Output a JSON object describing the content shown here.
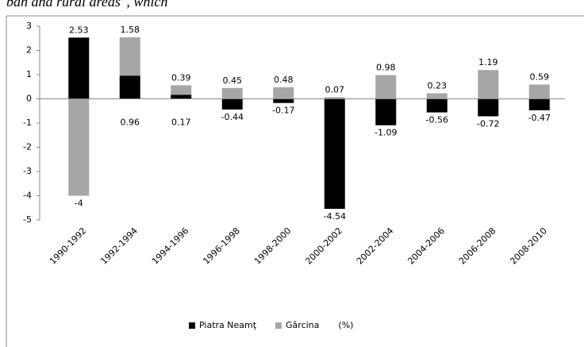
{
  "document_text": "ban and rural areas\", which",
  "chart_data": {
    "type": "stacked-bar",
    "categories": [
      "1990-1992",
      "1992-1994",
      "1994-1996",
      "1996-1998",
      "1998-2000",
      "2000-2002",
      "2002-2004",
      "2004-2006",
      "2006-2008",
      "2008-2010"
    ],
    "series": [
      {
        "name": "Piatra Neamţ",
        "color": "#000000",
        "values": [
          2.53,
          0.96,
          0.17,
          -0.44,
          -0.17,
          -4.54,
          -1.09,
          -0.56,
          -0.72,
          -0.47
        ]
      },
      {
        "name": "Gârcina",
        "color": "#a6a6a6",
        "values": [
          -4,
          1.58,
          0.39,
          0.45,
          0.48,
          0.07,
          0.98,
          0.23,
          1.19,
          0.59
        ]
      }
    ],
    "unit_label": "(%)",
    "ylim": [
      -5,
      3
    ],
    "yticks": [
      -5,
      -4,
      -3,
      -2,
      -1,
      0,
      1,
      2,
      3
    ],
    "grid": false,
    "legend": "bottom"
  }
}
